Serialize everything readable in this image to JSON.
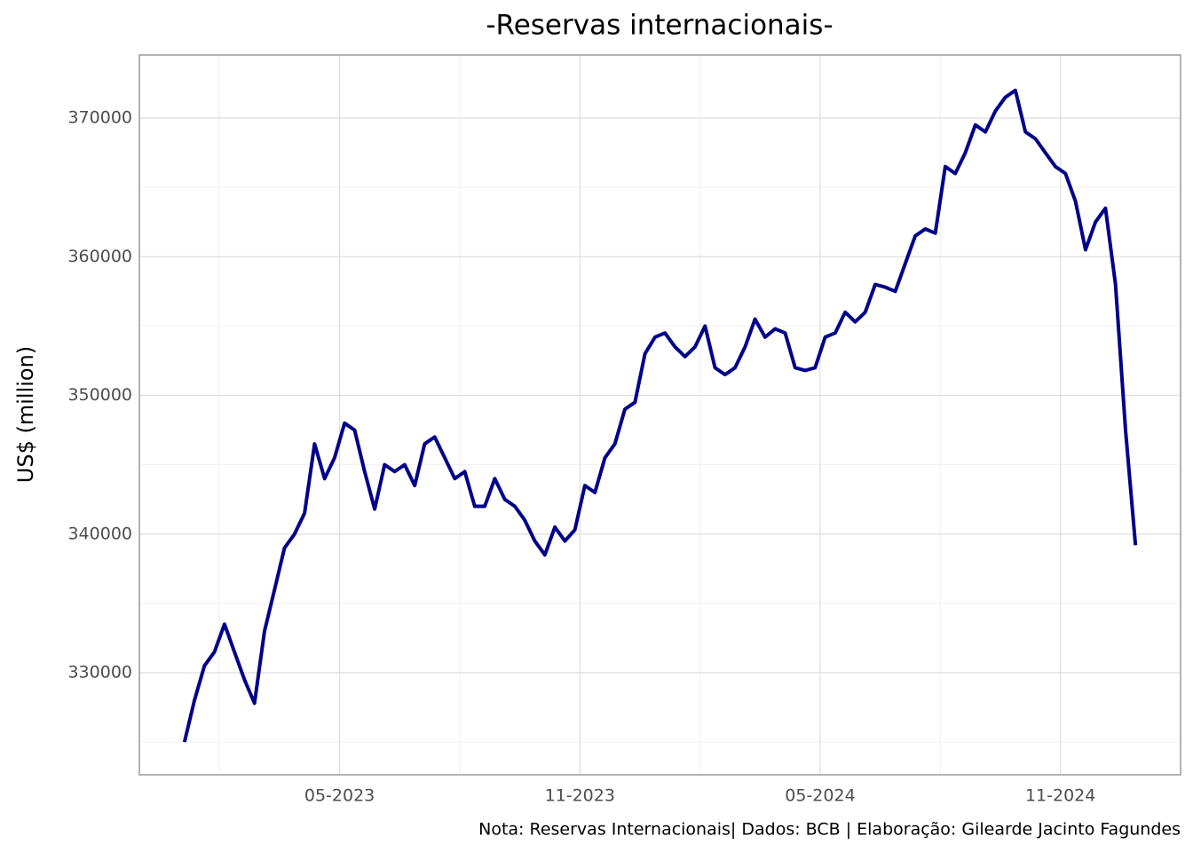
{
  "chart_data": {
    "type": "line",
    "title": "-Reservas internacionais-",
    "y_label": "US$ (million)",
    "caption": "Nota: Reservas Internacionais| Dados: BCB | Elaboração: Gilearde Jacinto Fagundes",
    "color": "#00008b",
    "grid": true,
    "x": [
      "2023-01",
      "2023-01",
      "2023-01",
      "2023-01",
      "2023-02",
      "2023-02",
      "2023-02",
      "2023-02",
      "2023-03",
      "2023-03",
      "2023-03",
      "2023-03",
      "2023-04",
      "2023-04",
      "2023-04",
      "2023-04",
      "2023-05",
      "2023-05",
      "2023-05",
      "2023-05",
      "2023-06",
      "2023-06",
      "2023-06",
      "2023-06",
      "2023-07",
      "2023-07",
      "2023-07",
      "2023-07",
      "2023-08",
      "2023-08",
      "2023-08",
      "2023-08",
      "2023-09",
      "2023-09",
      "2023-09",
      "2023-09",
      "2023-10",
      "2023-10",
      "2023-10",
      "2023-10",
      "2023-11",
      "2023-11",
      "2023-11",
      "2023-11",
      "2023-12",
      "2023-12",
      "2023-12",
      "2023-12",
      "2024-01",
      "2024-01",
      "2024-01",
      "2024-01",
      "2024-02",
      "2024-02",
      "2024-02",
      "2024-02",
      "2024-03",
      "2024-03",
      "2024-03",
      "2024-03",
      "2024-04",
      "2024-04",
      "2024-04",
      "2024-04",
      "2024-05",
      "2024-05",
      "2024-05",
      "2024-05",
      "2024-06",
      "2024-06",
      "2024-06",
      "2024-06",
      "2024-07",
      "2024-07",
      "2024-07",
      "2024-07",
      "2024-08",
      "2024-08",
      "2024-08",
      "2024-08",
      "2024-09",
      "2024-09",
      "2024-09",
      "2024-09",
      "2024-10",
      "2024-10",
      "2024-10",
      "2024-10",
      "2024-11",
      "2024-11",
      "2024-11",
      "2024-11",
      "2024-12",
      "2024-12",
      "2024-12",
      "2024-12"
    ],
    "values": [
      325000,
      328000,
      330500,
      331500,
      333500,
      331500,
      329500,
      327800,
      333000,
      336000,
      339000,
      340000,
      341500,
      346500,
      344000,
      345500,
      348000,
      347500,
      344500,
      341800,
      345000,
      344500,
      345000,
      343500,
      346500,
      347000,
      345500,
      344000,
      344500,
      342000,
      342000,
      344000,
      342500,
      342000,
      341000,
      339500,
      338500,
      340500,
      339500,
      340300,
      343500,
      343000,
      345500,
      346500,
      349000,
      349500,
      353000,
      354200,
      354500,
      353500,
      352800,
      353500,
      355000,
      352000,
      351500,
      352000,
      353500,
      355500,
      354200,
      354800,
      354500,
      352000,
      351800,
      352000,
      354200,
      354500,
      356000,
      355300,
      356000,
      358000,
      357800,
      357500,
      359500,
      361500,
      362000,
      361700,
      366500,
      366000,
      367500,
      369500,
      369000,
      370500,
      371500,
      372000,
      369000,
      368500,
      367500,
      366500,
      366000,
      364000,
      360500,
      362500,
      363500,
      358000,
      347500,
      339200
    ],
    "xlim": [
      "2022-12",
      "2025-02"
    ],
    "xticks": [
      {
        "value": "2023-05",
        "label": "05-2023"
      },
      {
        "value": "2023-11",
        "label": "11-2023"
      },
      {
        "value": "2024-05",
        "label": "05-2024"
      },
      {
        "value": "2024-11",
        "label": "11-2024"
      }
    ],
    "ylim": [
      322640,
      374544
    ],
    "yticks": [
      330000,
      340000,
      350000,
      360000,
      370000
    ]
  }
}
